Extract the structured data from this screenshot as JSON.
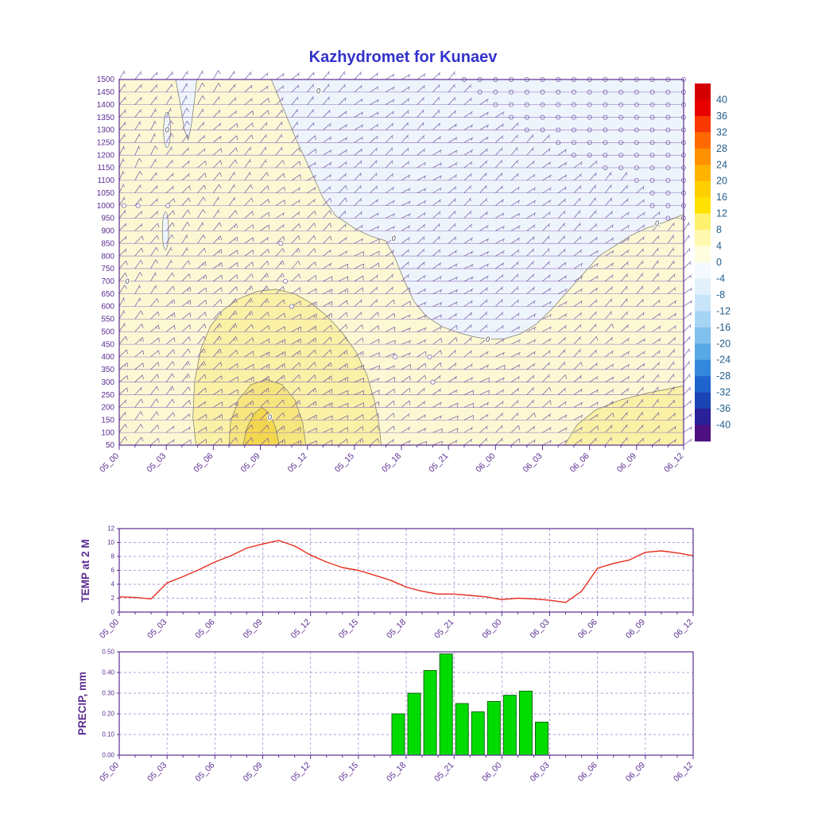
{
  "title": "Kazhydromet for Kunaev",
  "time_labels": [
    "05_00",
    "05_03",
    "05_06",
    "05_09",
    "05_12",
    "05_15",
    "05_18",
    "05_21",
    "06_00",
    "06_03",
    "06_06",
    "06_09",
    "06_12"
  ],
  "colors": {
    "frame": "#5b2d91",
    "axis_text": "#5b2d91",
    "title": "#3232cc",
    "level_grid": "#8f6fbf",
    "dash_grid": "#9a7cc8",
    "barb": "#6f55a5",
    "contour": "#777766",
    "contour_label": "#444444",
    "temp_line": "#e62e1e",
    "precip_fill": "#00dc00",
    "precip_stroke": "#0a5a0a",
    "colorbar_text": "#1f5c8a"
  },
  "chart_data": [
    {
      "type": "heatmap",
      "name": "wind-temperature-cross-section",
      "x_tick_labels": [
        "05_00",
        "05_03",
        "05_06",
        "05_09",
        "05_12",
        "05_15",
        "05_18",
        "05_21",
        "06_00",
        "06_03",
        "06_06",
        "06_09",
        "06_12"
      ],
      "x_hours": 36,
      "y_levels": [
        1500,
        1450,
        1400,
        1350,
        1300,
        1250,
        1200,
        1150,
        1100,
        1050,
        1000,
        950,
        900,
        850,
        800,
        750,
        700,
        650,
        600,
        550,
        500,
        450,
        400,
        350,
        300,
        250,
        200,
        150,
        100,
        50
      ],
      "colorbar": {
        "ticks": [
          40,
          36,
          32,
          28,
          24,
          20,
          16,
          12,
          8,
          4,
          0,
          -4,
          -8,
          -12,
          -16,
          -20,
          -24,
          -28,
          -32,
          -36,
          -40
        ],
        "colors": [
          "#d40000",
          "#e80000",
          "#f83800",
          "#ff6a00",
          "#ff9000",
          "#ffb200",
          "#ffce00",
          "#ffe200",
          "#fff170",
          "#fff9b0",
          "#fffde0",
          "#f4f9ff",
          "#e2f0fb",
          "#c8e4f8",
          "#a8d4f4",
          "#80c0ee",
          "#58a8e6",
          "#3488dc",
          "#1e64cc",
          "#1a44b4",
          "#2a2098",
          "#4c1080"
        ]
      },
      "base_fill": "#fcf8d4",
      "regions": [
        {
          "name": "subzero-upper-right",
          "color": "#eef4fb",
          "poly": [
            [
              9.7,
              1500
            ],
            [
              10.5,
              1380
            ],
            [
              11.3,
              1260
            ],
            [
              12.2,
              1140
            ],
            [
              13.0,
              1030
            ],
            [
              13.8,
              960
            ],
            [
              15,
              910
            ],
            [
              16,
              880
            ],
            [
              17,
              860
            ],
            [
              17.6,
              790
            ],
            [
              18.2,
              700
            ],
            [
              18.8,
              620
            ],
            [
              19.6,
              560
            ],
            [
              20.6,
              520
            ],
            [
              21.6,
              497
            ],
            [
              22.6,
              480
            ],
            [
              23.6,
              470
            ],
            [
              24.6,
              472
            ],
            [
              25.6,
              492
            ],
            [
              26.6,
              530
            ],
            [
              27.6,
              590
            ],
            [
              28.6,
              660
            ],
            [
              29.6,
              730
            ],
            [
              30.6,
              800
            ],
            [
              31.6,
              840
            ],
            [
              32.6,
              880
            ],
            [
              33.6,
              910
            ],
            [
              34.6,
              930
            ],
            [
              35.4,
              950
            ],
            [
              36,
              965
            ]
          ],
          "close": [
            [
              36,
              1500
            ]
          ]
        },
        {
          "name": "subzero-top-sliver",
          "color": "#eef4fb",
          "poly": [
            [
              3.6,
              1500
            ],
            [
              3.9,
              1400
            ],
            [
              4.15,
              1300
            ],
            [
              4.4,
              1260
            ],
            [
              4.6,
              1320
            ],
            [
              4.8,
              1420
            ],
            [
              4.95,
              1500
            ]
          ],
          "close": []
        },
        {
          "name": "warm-inner",
          "color": "#faf0a6",
          "poly": [
            [
              4.9,
              50
            ],
            [
              4.7,
              160
            ],
            [
              4.8,
              300
            ],
            [
              5.2,
              430
            ],
            [
              5.8,
              520
            ],
            [
              6.6,
              585
            ],
            [
              7.6,
              630
            ],
            [
              8.8,
              660
            ],
            [
              10,
              668
            ],
            [
              11.2,
              650
            ],
            [
              12.2,
              615
            ],
            [
              13.2,
              565
            ],
            [
              14.2,
              498
            ],
            [
              15.1,
              420
            ],
            [
              15.8,
              330
            ],
            [
              16.3,
              220
            ],
            [
              16.6,
              120
            ],
            [
              16.7,
              50
            ]
          ],
          "close": []
        },
        {
          "name": "warm-inner-2",
          "color": "#f7e67e",
          "poly": [
            [
              7.0,
              50
            ],
            [
              7.1,
              140
            ],
            [
              7.6,
              230
            ],
            [
              8.4,
              290
            ],
            [
              9.4,
              310
            ],
            [
              10.4,
              290
            ],
            [
              11.2,
              230
            ],
            [
              11.7,
              140
            ],
            [
              11.9,
              50
            ]
          ],
          "close": []
        },
        {
          "name": "warm-core",
          "color": "#f3d74f",
          "poly": [
            [
              7.9,
              50
            ],
            [
              8.15,
              120
            ],
            [
              8.6,
              175
            ],
            [
              9.1,
              200
            ],
            [
              9.6,
              175
            ],
            [
              10.0,
              115
            ],
            [
              10.2,
              50
            ]
          ],
          "close": []
        },
        {
          "name": "warm-bottom-right",
          "color": "#faf0a6",
          "poly": [
            [
              28.4,
              50
            ],
            [
              29.2,
              130
            ],
            [
              30.4,
              190
            ],
            [
              32,
              230
            ],
            [
              33.8,
              258
            ],
            [
              35.2,
              275
            ],
            [
              36,
              285
            ]
          ],
          "close": [
            [
              36,
              50
            ]
          ]
        }
      ],
      "contour_blobs": [
        {
          "h": 3.05,
          "v": 1300,
          "rh": 0.22,
          "rv": 70,
          "color": "#eef4fb"
        },
        {
          "h": 2.95,
          "v": 900,
          "rh": 0.2,
          "rv": 75,
          "color": "#eef4fb"
        }
      ],
      "contour_labels": [
        {
          "h": 0.5,
          "v": 700,
          "text": "0"
        },
        {
          "h": 3.05,
          "v": 1300,
          "text": "0"
        },
        {
          "h": 12.7,
          "v": 1455,
          "text": "0"
        },
        {
          "h": 17.5,
          "v": 870,
          "text": "0"
        },
        {
          "h": 23.5,
          "v": 470,
          "text": "0"
        },
        {
          "h": 34.3,
          "v": 930,
          "text": "0"
        },
        {
          "h": 9.6,
          "v": 160,
          "text": "0"
        }
      ],
      "calm_points": [
        [
          0.3,
          1000
        ],
        [
          1.2,
          1000
        ],
        [
          3.1,
          1000
        ],
        [
          10.3,
          850
        ],
        [
          10.6,
          700
        ],
        [
          11.0,
          600
        ],
        [
          19.8,
          400
        ],
        [
          20.0,
          300
        ],
        [
          17.6,
          400
        ]
      ],
      "wind_grid": {
        "hours": [
          0,
          6,
          12,
          18,
          24,
          30,
          36
        ],
        "levels": [
          50,
          350,
          650,
          950,
          1250,
          1500
        ],
        "speed": [
          [
            8,
            10,
            12,
            8,
            6,
            6,
            5
          ],
          [
            10,
            12,
            14,
            8,
            6,
            6,
            5
          ],
          [
            8,
            12,
            12,
            6,
            5,
            6,
            5
          ],
          [
            6,
            10,
            8,
            5,
            4,
            4,
            2
          ],
          [
            5,
            8,
            6,
            4,
            3,
            2,
            1
          ],
          [
            5,
            6,
            5,
            3,
            2,
            1,
            1
          ]
        ],
        "dir": [
          [
            45,
            50,
            55,
            60,
            55,
            50,
            45
          ],
          [
            40,
            48,
            55,
            60,
            55,
            50,
            45
          ],
          [
            38,
            45,
            52,
            58,
            55,
            50,
            45
          ],
          [
            35,
            42,
            50,
            55,
            52,
            48,
            42
          ],
          [
            32,
            40,
            48,
            52,
            50,
            45,
            40
          ],
          [
            30,
            38,
            45,
            50,
            48,
            42,
            38
          ]
        ]
      }
    },
    {
      "type": "line",
      "name": "temperature-2m",
      "ylabel": "TEMP at 2 M",
      "ylim": [
        0,
        12
      ],
      "y_ticks": [
        0,
        2,
        4,
        6,
        8,
        10,
        12
      ],
      "x_tick_labels": [
        "05_00",
        "05_03",
        "05_06",
        "05_09",
        "05_12",
        "05_15",
        "05_18",
        "05_21",
        "06_00",
        "06_03",
        "06_06",
        "06_09",
        "06_12"
      ],
      "x_hours": 36,
      "values": [
        2.2,
        2.1,
        1.9,
        4.2,
        5.1,
        6.1,
        7.2,
        8.1,
        9.2,
        9.8,
        10.3,
        9.5,
        8.2,
        7.2,
        6.4,
        6.0,
        5.3,
        4.6,
        3.6,
        3.0,
        2.6,
        2.6,
        2.4,
        2.2,
        1.8,
        2.0,
        1.9,
        1.7,
        1.4,
        3.0,
        6.3,
        7.0,
        7.5,
        8.6,
        8.8,
        8.5,
        8.1
      ]
    },
    {
      "type": "bar",
      "name": "precipitation",
      "ylabel": "PRECIP, mm",
      "ylim": [
        0,
        0.5
      ],
      "y_ticks": [
        0,
        0.1,
        0.2,
        0.3,
        0.4,
        0.5
      ],
      "y_tick_labels": [
        "0.00",
        "0.10",
        "0.20",
        "0.30",
        "0.40",
        "0.50"
      ],
      "x_tick_labels": [
        "05_00",
        "05_03",
        "05_06",
        "05_09",
        "05_12",
        "05_15",
        "05_18",
        "05_21",
        "06_00",
        "06_03",
        "06_06",
        "06_09",
        "06_12"
      ],
      "x_hours": 36,
      "values": [
        0,
        0,
        0,
        0,
        0,
        0,
        0,
        0,
        0,
        0,
        0,
        0,
        0,
        0,
        0,
        0,
        0,
        0,
        0.2,
        0.3,
        0.41,
        0.49,
        0.25,
        0.21,
        0.26,
        0.29,
        0.31,
        0.16,
        0,
        0,
        0,
        0,
        0,
        0,
        0,
        0,
        0
      ]
    }
  ]
}
